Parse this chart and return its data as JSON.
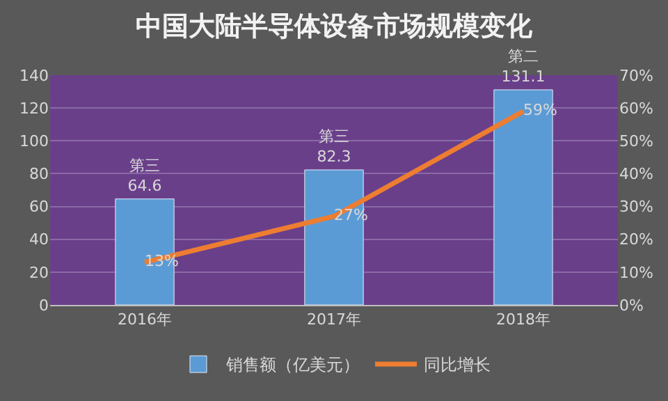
{
  "chart_data": {
    "type": "bar",
    "title": "中国大陆半导体设备市场规模变化",
    "categories": [
      "2016年",
      "2017年",
      "2018年"
    ],
    "series": [
      {
        "name": "销售额（亿美元）",
        "color": "#5b9bd5",
        "values": [
          64.6,
          82.3,
          131.1
        ],
        "value_labels": [
          "第三\n64.6",
          "第三\n82.3",
          "第二\n131.1"
        ]
      },
      {
        "name": "同比增长",
        "type": "line",
        "axis": "y2",
        "color": "#ed7d31",
        "values": [
          13,
          27,
          59
        ],
        "value_labels": [
          "13%",
          "27%",
          "59%"
        ]
      }
    ],
    "ylim": [
      0,
      140
    ],
    "yticks": [
      0,
      20,
      40,
      60,
      80,
      100,
      120,
      140
    ],
    "y2lim": [
      0,
      70
    ],
    "y2ticks": [
      {
        "value": 0,
        "label": "0%"
      },
      {
        "value": 10,
        "label": "10%"
      },
      {
        "value": 20,
        "label": "20%"
      },
      {
        "value": 30,
        "label": "30%"
      },
      {
        "value": 40,
        "label": "40%"
      },
      {
        "value": 50,
        "label": "50%"
      },
      {
        "value": 60,
        "label": "60%"
      },
      {
        "value": 70,
        "label": "70%"
      }
    ],
    "grid": "y",
    "legend": "bottom",
    "marker": "none",
    "line_style": "solid"
  }
}
